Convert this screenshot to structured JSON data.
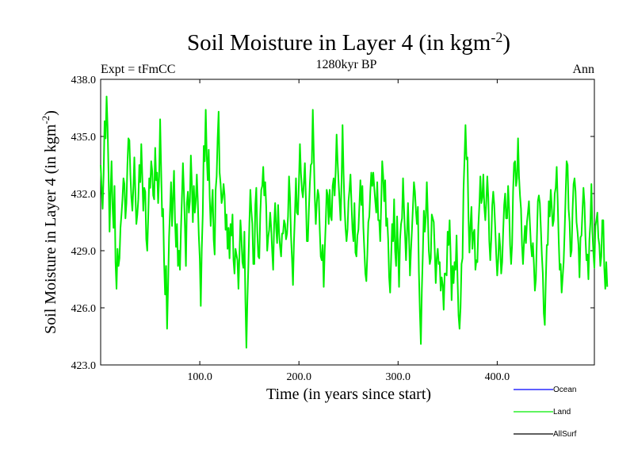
{
  "chart_data": {
    "type": "line",
    "title": "Soil Moisture in Layer 4 (in kgm",
    "title_exponent": "-2",
    "title_close": ")",
    "subtitle": "1280kyr BP",
    "left_label": "Expt = tFmCC",
    "right_label": "Ann",
    "xlabel": "Time (in years since start)",
    "ylabel": "Soil Moisture in Layer 4 (in kgm",
    "ylabel_exponent": "-2",
    "ylabel_close": ")",
    "xlim": [
      0,
      498
    ],
    "ylim": [
      423.0,
      438.0
    ],
    "x_ticks": [
      100,
      200,
      300,
      400
    ],
    "x_tick_labels": [
      "100.0",
      "200.0",
      "300.0",
      "400.0"
    ],
    "y_ticks": [
      423,
      426,
      429,
      432,
      435,
      438
    ],
    "y_tick_labels": [
      "423.0",
      "426.0",
      "429.0",
      "432.0",
      "435.0",
      "438.0"
    ],
    "series": [
      {
        "name": "Ocean",
        "color": "#0000ff",
        "values": []
      },
      {
        "name": "Land",
        "color": "#00ee00",
        "x_start": 0,
        "x_step": 1,
        "values": [
          433.5,
          432.3,
          431.2,
          433.0,
          435.8,
          434.9,
          437.1,
          435.5,
          433.0,
          430.0,
          432.1,
          433.7,
          431.3,
          430.2,
          432.4,
          428.4,
          427.0,
          429.1,
          428.2,
          428.6,
          430.2,
          430.9,
          431.7,
          432.8,
          432.5,
          430.7,
          431.5,
          433.5,
          434.9,
          434.8,
          433.0,
          431.8,
          431.1,
          432.3,
          433.9,
          432.1,
          430.4,
          430.9,
          431.7,
          433.5,
          432.6,
          434.6,
          432.9,
          431.1,
          432.3,
          432.1,
          429.6,
          429.0,
          430.8,
          432.8,
          432.3,
          433.7,
          433.2,
          431.9,
          431.7,
          434.4,
          432.7,
          433.1,
          431.5,
          432.9,
          435.9,
          433.3,
          430.8,
          431.2,
          428.4,
          426.7,
          428.2,
          424.9,
          427.1,
          429.7,
          431.1,
          432.6,
          430.3,
          431.8,
          433.2,
          430.6,
          429.2,
          430.4,
          428.2,
          429.0,
          428.0,
          430.1,
          431.8,
          433.6,
          432.1,
          430.3,
          428.2,
          431.5,
          432.1,
          431.0,
          431.6,
          434.0,
          432.5,
          430.5,
          432.4,
          431.0,
          431.6,
          433.0,
          431.6,
          429.8,
          428.6,
          426.1,
          429.1,
          430.9,
          434.5,
          433.7,
          436.4,
          434.0,
          432.7,
          434.3,
          431.8,
          430.3,
          431.3,
          432.2,
          429.6,
          428.8,
          432.2,
          432.9,
          434.9,
          436.3,
          433.1,
          432.5,
          431.5,
          431.8,
          432.5,
          431.9,
          430.1,
          430.9,
          429.1,
          430.2,
          428.6,
          430.4,
          429.8,
          430.9,
          428.5,
          427.8,
          429.1,
          428.8,
          428.5,
          427.0,
          428.8,
          430.6,
          429.7,
          428.4,
          428.1,
          430.0,
          426.4,
          423.9,
          426.4,
          428.2,
          430.4,
          432.2,
          431.1,
          430.4,
          428.3,
          428.3,
          431.4,
          432.3,
          430.0,
          428.7,
          428.6,
          430.9,
          432.2,
          432.4,
          433.4,
          431.9,
          432.6,
          431.3,
          429.0,
          429.7,
          430.1,
          431.0,
          430.2,
          429.0,
          428.0,
          430.4,
          431.5,
          430.2,
          429.4,
          431.4,
          429.9,
          429.2,
          428.7,
          429.9,
          429.9,
          430.6,
          430.4,
          429.6,
          429.9,
          430.8,
          432.9,
          431.8,
          429.8,
          428.6,
          427.2,
          429.5,
          431.0,
          432.8,
          431.0,
          430.9,
          432.6,
          434.6,
          433.1,
          432.2,
          431.8,
          432.6,
          433.6,
          431.8,
          429.5,
          429.5,
          431.1,
          432.5,
          433.5,
          433.6,
          436.4,
          434.1,
          431.8,
          430.4,
          431.5,
          432.2,
          431.9,
          430.1,
          428.7,
          428.5,
          429.3,
          427.1,
          429.0,
          430.4,
          432.2,
          431.9,
          430.4,
          432.2,
          430.8,
          430.6,
          432.4,
          432.8,
          431.9,
          433.1,
          435.1,
          433.7,
          432.6,
          431.6,
          430.6,
          432.6,
          435.6,
          433.1,
          431.3,
          430.2,
          429.5,
          430.1,
          431.6,
          432.2,
          433.0,
          431.5,
          430.1,
          429.5,
          431.5,
          428.9,
          428.7,
          429.8,
          430.1,
          431.4,
          432.7,
          431.4,
          432.4,
          430.2,
          429.0,
          427.8,
          427.4,
          428.8,
          430.5,
          430.8,
          432.1,
          433.1,
          432.4,
          433.1,
          432.3,
          431.6,
          431.0,
          432.6,
          430.6,
          430.6,
          429.5,
          431.5,
          433.7,
          432.9,
          431.6,
          432.7,
          430.3,
          430.7,
          429.6,
          427.6,
          426.8,
          428.6,
          430.4,
          429.5,
          431.7,
          429.0,
          428.2,
          430.8,
          429.1,
          427.1,
          429.6,
          430.4,
          430.7,
          432.8,
          431.2,
          429.9,
          428.5,
          429.9,
          431.5,
          429.8,
          427.7,
          429.0,
          430.1,
          431.3,
          432.6,
          432.1,
          431.1,
          430.4,
          431.3,
          427.9,
          425.8,
          424.1,
          427.0,
          428.9,
          431.1,
          430.0,
          430.8,
          432.6,
          430.9,
          429.0,
          428.3,
          428.6,
          430.9,
          430.7,
          430.5,
          429.0,
          427.3,
          428.6,
          429.1,
          428.3,
          428.4,
          426.9,
          427.6,
          427.2,
          425.9,
          427.8,
          427.8,
          427.7,
          430.0,
          429.3,
          430.6,
          428.8,
          426.4,
          428.2,
          427.3,
          428.4,
          428.0,
          429.8,
          427.5,
          425.6,
          424.9,
          426.0,
          428.3,
          428.6,
          432.2,
          433.8,
          435.6,
          433.8,
          433.9,
          430.8,
          428.9,
          430.3,
          431.3,
          429.1,
          429.9,
          430.1,
          428.0,
          428.5,
          428.4,
          430.3,
          431.4,
          432.9,
          431.5,
          431.8,
          433.0,
          431.3,
          430.6,
          431.6,
          432.9,
          431.8,
          429.5,
          428.5,
          429.6,
          431.4,
          432.1,
          431.4,
          430.2,
          428.8,
          427.7,
          428.5,
          429.9,
          429.2,
          427.8,
          428.4,
          430.0,
          431.4,
          432.0,
          430.7,
          430.7,
          432.4,
          431.2,
          429.3,
          428.3,
          429.3,
          432.1,
          433.6,
          433.7,
          432.4,
          432.8,
          434.9,
          432.9,
          431.9,
          431.2,
          429.3,
          428.3,
          429.4,
          430.3,
          429.4,
          430.5,
          431.0,
          431.6,
          430.4,
          429.3,
          428.7,
          429.4,
          428.3,
          426.9,
          427.5,
          429.6,
          431.6,
          431.9,
          431.5,
          430.2,
          428.8,
          427.8,
          425.7,
          425.1,
          427.4,
          429.3,
          429.3,
          431.6,
          430.8,
          432.2,
          431.3,
          430.3,
          430.6,
          432.0,
          432.3,
          433.4,
          431.6,
          429.6,
          428.0,
          428.3,
          426.8,
          427.6,
          428.4,
          430.0,
          431.9,
          433.7,
          433.5,
          431.2,
          430.5,
          428.7,
          429.0,
          431.1,
          432.5,
          432.8,
          432.1,
          430.5,
          430.0,
          429.3,
          427.6,
          429.7,
          429.8,
          431.1,
          432.3,
          431.5,
          429.7,
          428.5,
          428.8,
          427.5,
          429.6,
          430.5,
          432.5,
          430.0,
          428.9,
          428.1,
          430.3,
          430.6,
          431.0,
          429.7,
          429.3,
          428.2,
          428.7,
          430.6,
          430.6,
          428.1,
          427.0,
          428.4,
          427.1
        ]
      },
      {
        "name": "AllSurf",
        "color": "#000000",
        "values": []
      }
    ],
    "legend": {
      "position": "bottom-right",
      "entries": [
        "Ocean",
        "Land",
        "AllSurf"
      ]
    }
  }
}
